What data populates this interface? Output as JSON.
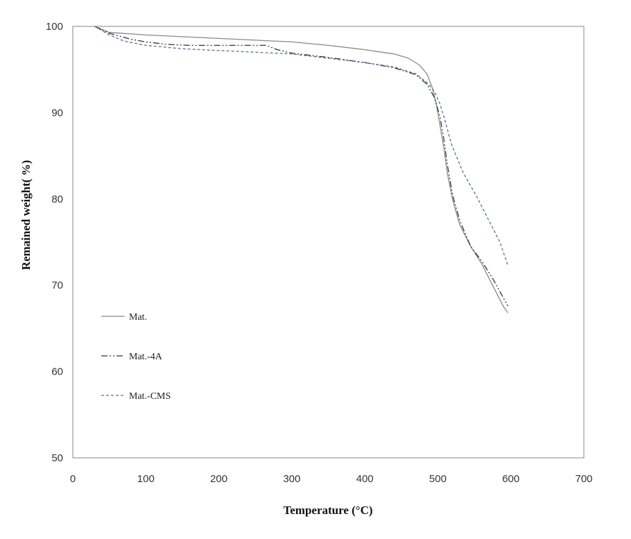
{
  "chart_data": {
    "type": "line",
    "title": "",
    "xlabel": "Temperature (°C)",
    "ylabel": "Remained weight( %)",
    "xlim": [
      0,
      700
    ],
    "ylim": [
      50,
      100
    ],
    "xticks": [
      "0",
      "100",
      "200",
      "300",
      "400",
      "500",
      "600",
      "700"
    ],
    "yticks": [
      "50",
      "60",
      "70",
      "80",
      "90",
      "100"
    ],
    "grid": false,
    "legend_position": "left",
    "series": [
      {
        "name": "Mat.",
        "style": "solid",
        "color": "#888888",
        "points": [
          [
            30,
            100
          ],
          [
            50,
            99.3
          ],
          [
            100,
            99.0
          ],
          [
            150,
            98.8
          ],
          [
            200,
            98.6
          ],
          [
            250,
            98.4
          ],
          [
            300,
            98.2
          ],
          [
            350,
            97.8
          ],
          [
            400,
            97.3
          ],
          [
            440,
            96.8
          ],
          [
            460,
            96.3
          ],
          [
            475,
            95.5
          ],
          [
            485,
            94.5
          ],
          [
            492,
            93.0
          ],
          [
            498,
            91.0
          ],
          [
            503,
            88.5
          ],
          [
            508,
            86.0
          ],
          [
            513,
            83.0
          ],
          [
            520,
            80.0
          ],
          [
            530,
            77.0
          ],
          [
            545,
            74.5
          ],
          [
            560,
            72.5
          ],
          [
            575,
            70.0
          ],
          [
            590,
            67.5
          ],
          [
            596,
            66.8
          ]
        ]
      },
      {
        "name": "Mat.-4A",
        "style": "dash-dot-dot",
        "color": "#333333",
        "points": [
          [
            30,
            100
          ],
          [
            50,
            99.2
          ],
          [
            80,
            98.5
          ],
          [
            100,
            98.2
          ],
          [
            130,
            97.9
          ],
          [
            160,
            97.8
          ],
          [
            200,
            97.8
          ],
          [
            240,
            97.8
          ],
          [
            265,
            97.8
          ],
          [
            280,
            97.3
          ],
          [
            300,
            96.9
          ],
          [
            350,
            96.4
          ],
          [
            400,
            95.8
          ],
          [
            440,
            95.2
          ],
          [
            470,
            94.4
          ],
          [
            485,
            93.3
          ],
          [
            495,
            91.8
          ],
          [
            503,
            89.5
          ],
          [
            508,
            87.0
          ],
          [
            513,
            84.0
          ],
          [
            520,
            80.5
          ],
          [
            530,
            77.5
          ],
          [
            545,
            74.5
          ],
          [
            560,
            72.8
          ],
          [
            575,
            70.8
          ],
          [
            590,
            68.5
          ],
          [
            596,
            67.6
          ]
        ]
      },
      {
        "name": "Mat.-CMS",
        "style": "dashed",
        "color": "#5a6f9a",
        "points": [
          [
            30,
            100
          ],
          [
            50,
            99.0
          ],
          [
            70,
            98.3
          ],
          [
            100,
            97.8
          ],
          [
            150,
            97.4
          ],
          [
            200,
            97.2
          ],
          [
            250,
            97.0
          ],
          [
            300,
            96.8
          ],
          [
            350,
            96.3
          ],
          [
            400,
            95.8
          ],
          [
            440,
            95.3
          ],
          [
            470,
            94.5
          ],
          [
            485,
            93.5
          ],
          [
            495,
            92.5
          ],
          [
            503,
            91.0
          ],
          [
            510,
            89.0
          ],
          [
            518,
            86.5
          ],
          [
            525,
            85.0
          ],
          [
            535,
            83.0
          ],
          [
            545,
            81.5
          ],
          [
            555,
            80.0
          ],
          [
            570,
            77.5
          ],
          [
            585,
            75.0
          ],
          [
            596,
            72.3
          ]
        ]
      }
    ]
  }
}
